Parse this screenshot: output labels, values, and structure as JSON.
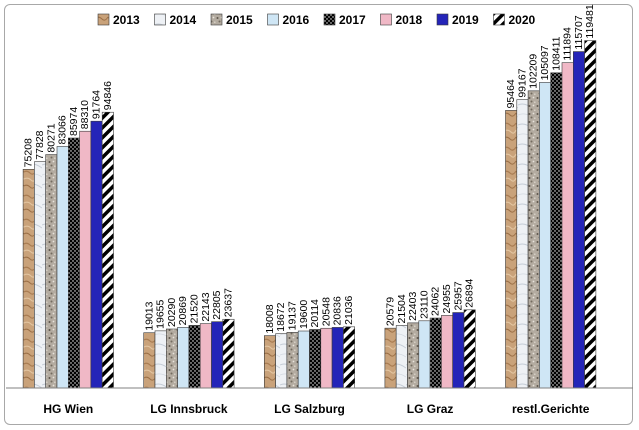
{
  "chart_data": {
    "type": "bar",
    "title": "",
    "xlabel": "",
    "ylabel": "",
    "ylim": [
      0,
      130000
    ],
    "grid": false,
    "legend_position": "top",
    "categories": [
      "HG Wien",
      "LG Innsbruck",
      "LG Salzburg",
      "LG Graz",
      "restl.Gerichte"
    ],
    "series": [
      {
        "name": "2013",
        "values": [
          75208,
          19013,
          18008,
          20579,
          95464
        ],
        "color": "#c8a27a",
        "pattern": "wood"
      },
      {
        "name": "2014",
        "values": [
          77828,
          19655,
          18672,
          21504,
          99167
        ],
        "color": "#eef1f6",
        "pattern": "marble"
      },
      {
        "name": "2015",
        "values": [
          80271,
          20290,
          19137,
          22403,
          102209
        ],
        "color": "#a89f92",
        "pattern": "granite"
      },
      {
        "name": "2016",
        "values": [
          83066,
          20869,
          19600,
          23110,
          105097
        ],
        "color": "#cfe6f5",
        "pattern": "solid"
      },
      {
        "name": "2017",
        "values": [
          85974,
          21520,
          20114,
          24062,
          108411
        ],
        "color": "#000000",
        "pattern": "dots"
      },
      {
        "name": "2018",
        "values": [
          88310,
          22143,
          20548,
          24955,
          111894
        ],
        "color": "#f0b8c6",
        "pattern": "solid"
      },
      {
        "name": "2019",
        "values": [
          91764,
          22805,
          20836,
          25957,
          115707
        ],
        "color": "#2424b8",
        "pattern": "solid"
      },
      {
        "name": "2020",
        "values": [
          94846,
          23637,
          21036,
          26894,
          119481
        ],
        "color": "#ffffff",
        "pattern": "stripes"
      }
    ]
  }
}
